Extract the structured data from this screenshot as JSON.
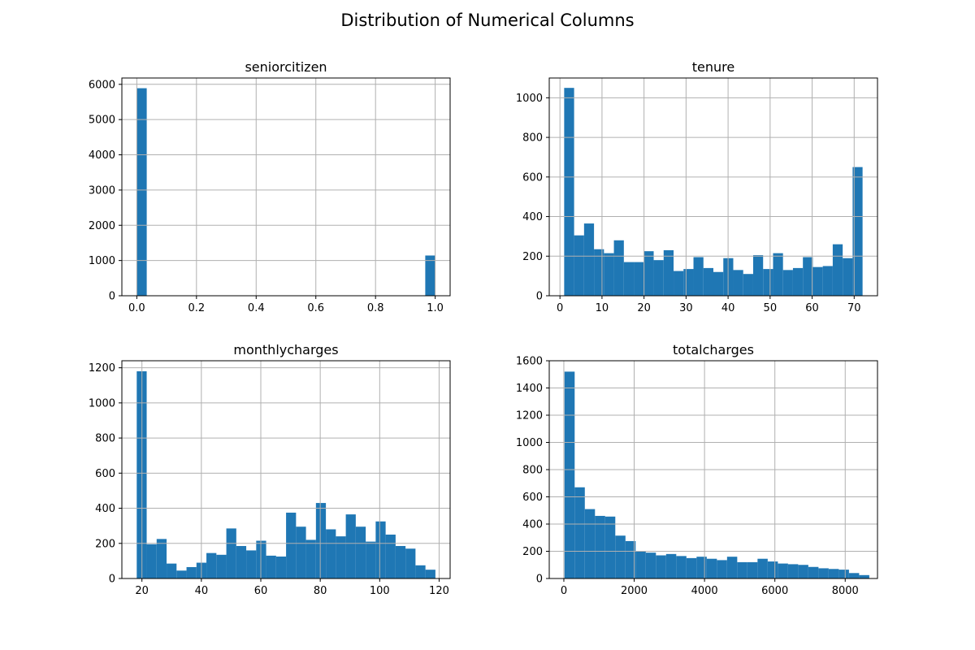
{
  "title": "Distribution of Numerical Columns",
  "colors": {
    "bar": "#1f77b4",
    "grid": "#b0b0b0"
  },
  "chart_data": [
    {
      "type": "bar",
      "title": "seniorcitizen",
      "grid": true,
      "xlim": [
        -0.05,
        1.05
      ],
      "ylim": [
        0,
        6180
      ],
      "xticks": [
        0.0,
        0.2,
        0.4,
        0.6,
        0.8,
        1.0
      ],
      "xtick_labels": [
        "0.0",
        "0.2",
        "0.4",
        "0.6",
        "0.8",
        "1.0"
      ],
      "yticks": [
        0,
        1000,
        2000,
        3000,
        4000,
        5000,
        6000
      ],
      "ytick_labels": [
        "0",
        "1000",
        "2000",
        "3000",
        "4000",
        "5000",
        "6000"
      ],
      "bin_edges": [
        0.0,
        1.0
      ],
      "bins": 30,
      "values": [
        5890,
        0,
        0,
        0,
        0,
        0,
        0,
        0,
        0,
        0,
        0,
        0,
        0,
        0,
        0,
        0,
        0,
        0,
        0,
        0,
        0,
        0,
        0,
        0,
        0,
        0,
        0,
        0,
        0,
        1142
      ]
    },
    {
      "type": "bar",
      "title": "tenure",
      "grid": true,
      "xlim": [
        -2.55,
        75.55
      ],
      "ylim": [
        0,
        1100
      ],
      "xticks": [
        0,
        10,
        20,
        30,
        40,
        50,
        60,
        70
      ],
      "xtick_labels": [
        "0",
        "10",
        "20",
        "30",
        "40",
        "50",
        "60",
        "70"
      ],
      "yticks": [
        0,
        200,
        400,
        600,
        800,
        1000
      ],
      "ytick_labels": [
        "0",
        "200",
        "400",
        "600",
        "800",
        "1000"
      ],
      "bin_edges": [
        1,
        72
      ],
      "bins": 30,
      "values": [
        1050,
        305,
        365,
        235,
        215,
        280,
        170,
        170,
        225,
        180,
        230,
        125,
        135,
        195,
        140,
        120,
        190,
        130,
        110,
        205,
        135,
        215,
        130,
        140,
        195,
        145,
        150,
        260,
        190,
        650
      ]
    },
    {
      "type": "bar",
      "title": "monthlycharges",
      "grid": true,
      "xlim": [
        13.25,
        123.7
      ],
      "ylim": [
        0,
        1240
      ],
      "xticks": [
        20,
        40,
        60,
        80,
        100,
        120
      ],
      "xtick_labels": [
        "20",
        "40",
        "60",
        "80",
        "100",
        "120"
      ],
      "yticks": [
        0,
        200,
        400,
        600,
        800,
        1000,
        1200
      ],
      "ytick_labels": [
        "0",
        "200",
        "400",
        "600",
        "800",
        "1000",
        "1200"
      ],
      "bin_edges": [
        18.25,
        118.75
      ],
      "bins": 30,
      "values": [
        1180,
        195,
        225,
        85,
        45,
        65,
        90,
        145,
        135,
        285,
        185,
        160,
        215,
        130,
        125,
        375,
        295,
        220,
        430,
        280,
        240,
        365,
        295,
        210,
        325,
        250,
        185,
        170,
        75,
        50
      ]
    },
    {
      "type": "bar",
      "title": "totalcharges",
      "grid": true,
      "xlim": [
        -415,
        8918
      ],
      "ylim": [
        0,
        1600
      ],
      "xticks": [
        0,
        2000,
        4000,
        6000,
        8000
      ],
      "xtick_labels": [
        "0",
        "2000",
        "4000",
        "6000",
        "8000"
      ],
      "yticks": [
        0,
        200,
        400,
        600,
        800,
        1000,
        1200,
        1400,
        1600
      ],
      "ytick_labels": [
        "0",
        "200",
        "400",
        "600",
        "800",
        "1000",
        "1200",
        "1400",
        "1600"
      ],
      "bin_edges": [
        18.8,
        8684.8
      ],
      "bins": 30,
      "values": [
        1520,
        670,
        510,
        460,
        455,
        315,
        275,
        200,
        190,
        170,
        180,
        165,
        150,
        160,
        145,
        135,
        160,
        120,
        120,
        145,
        125,
        110,
        105,
        100,
        85,
        75,
        70,
        65,
        40,
        25
      ]
    }
  ]
}
